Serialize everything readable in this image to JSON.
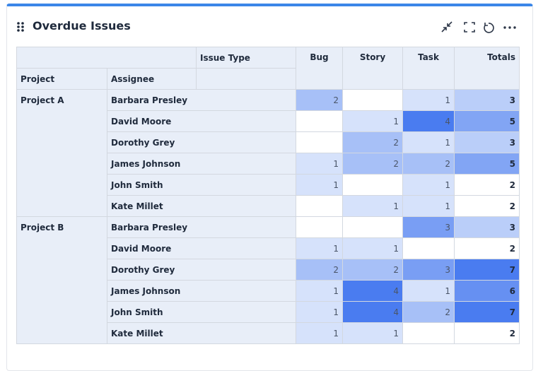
{
  "header": {
    "title": "Overdue Issues"
  },
  "table": {
    "column_header": "Issue Type",
    "row_headers": [
      "Project",
      "Assignee"
    ],
    "columns": [
      "Bug",
      "Story",
      "Task",
      "Totals"
    ],
    "groups": [
      {
        "project": "Project A",
        "rows": [
          {
            "assignee": "Barbara Presley",
            "values": [
              2,
              null,
              1,
              3
            ]
          },
          {
            "assignee": "David Moore",
            "values": [
              null,
              1,
              4,
              5
            ]
          },
          {
            "assignee": "Dorothy Grey",
            "values": [
              null,
              2,
              1,
              3
            ]
          },
          {
            "assignee": "James Johnson",
            "values": [
              1,
              2,
              2,
              5
            ]
          },
          {
            "assignee": "John Smith",
            "values": [
              1,
              null,
              1,
              2
            ]
          },
          {
            "assignee": "Kate Millet",
            "values": [
              null,
              1,
              1,
              2
            ]
          }
        ]
      },
      {
        "project": "Project B",
        "rows": [
          {
            "assignee": "Barbara Presley",
            "values": [
              null,
              null,
              3,
              3
            ]
          },
          {
            "assignee": "David Moore",
            "values": [
              1,
              1,
              null,
              2
            ]
          },
          {
            "assignee": "Dorothy Grey",
            "values": [
              2,
              2,
              3,
              7
            ]
          },
          {
            "assignee": "James Johnson",
            "values": [
              1,
              4,
              1,
              6
            ]
          },
          {
            "assignee": "John Smith",
            "values": [
              1,
              4,
              2,
              7
            ]
          },
          {
            "assignee": "Kate Millet",
            "values": [
              1,
              1,
              null,
              2
            ]
          }
        ]
      }
    ]
  }
}
